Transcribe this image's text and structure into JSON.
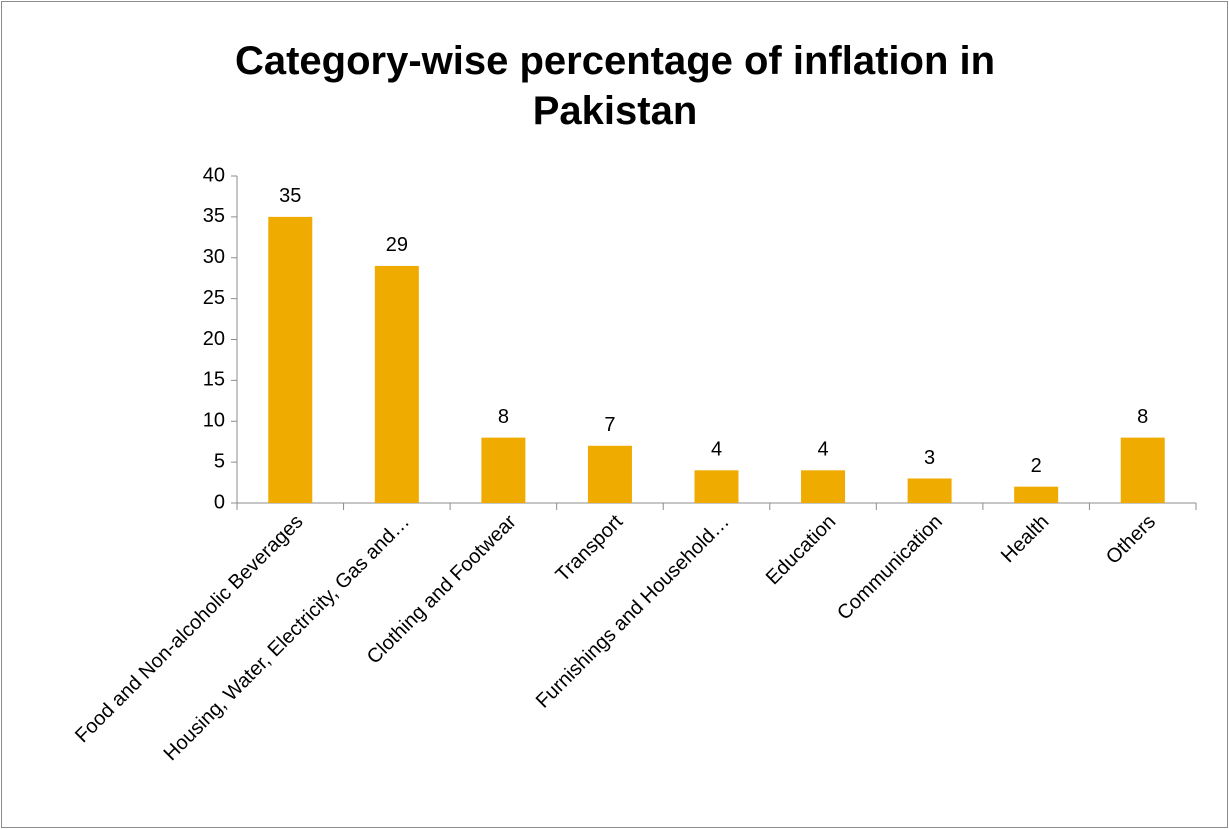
{
  "chart_data": {
    "type": "bar",
    "title": "Category-wise percentage of inflation in Pakistan",
    "categories": [
      "Food and Non-alcoholic Beverages",
      "Housing, Water, Electricity, Gas and…",
      "Clothing and Footwear",
      "Transport",
      "Furnishings and Household…",
      "Education",
      "Communication",
      "Health",
      "Others"
    ],
    "values": [
      35,
      29,
      8,
      7,
      4,
      4,
      3,
      2,
      8
    ],
    "color": "#f0ab00",
    "ylim": [
      0,
      40
    ],
    "yticks": [
      0,
      5,
      10,
      15,
      20,
      25,
      30,
      35,
      40
    ],
    "grid": false,
    "data_labels": true
  }
}
